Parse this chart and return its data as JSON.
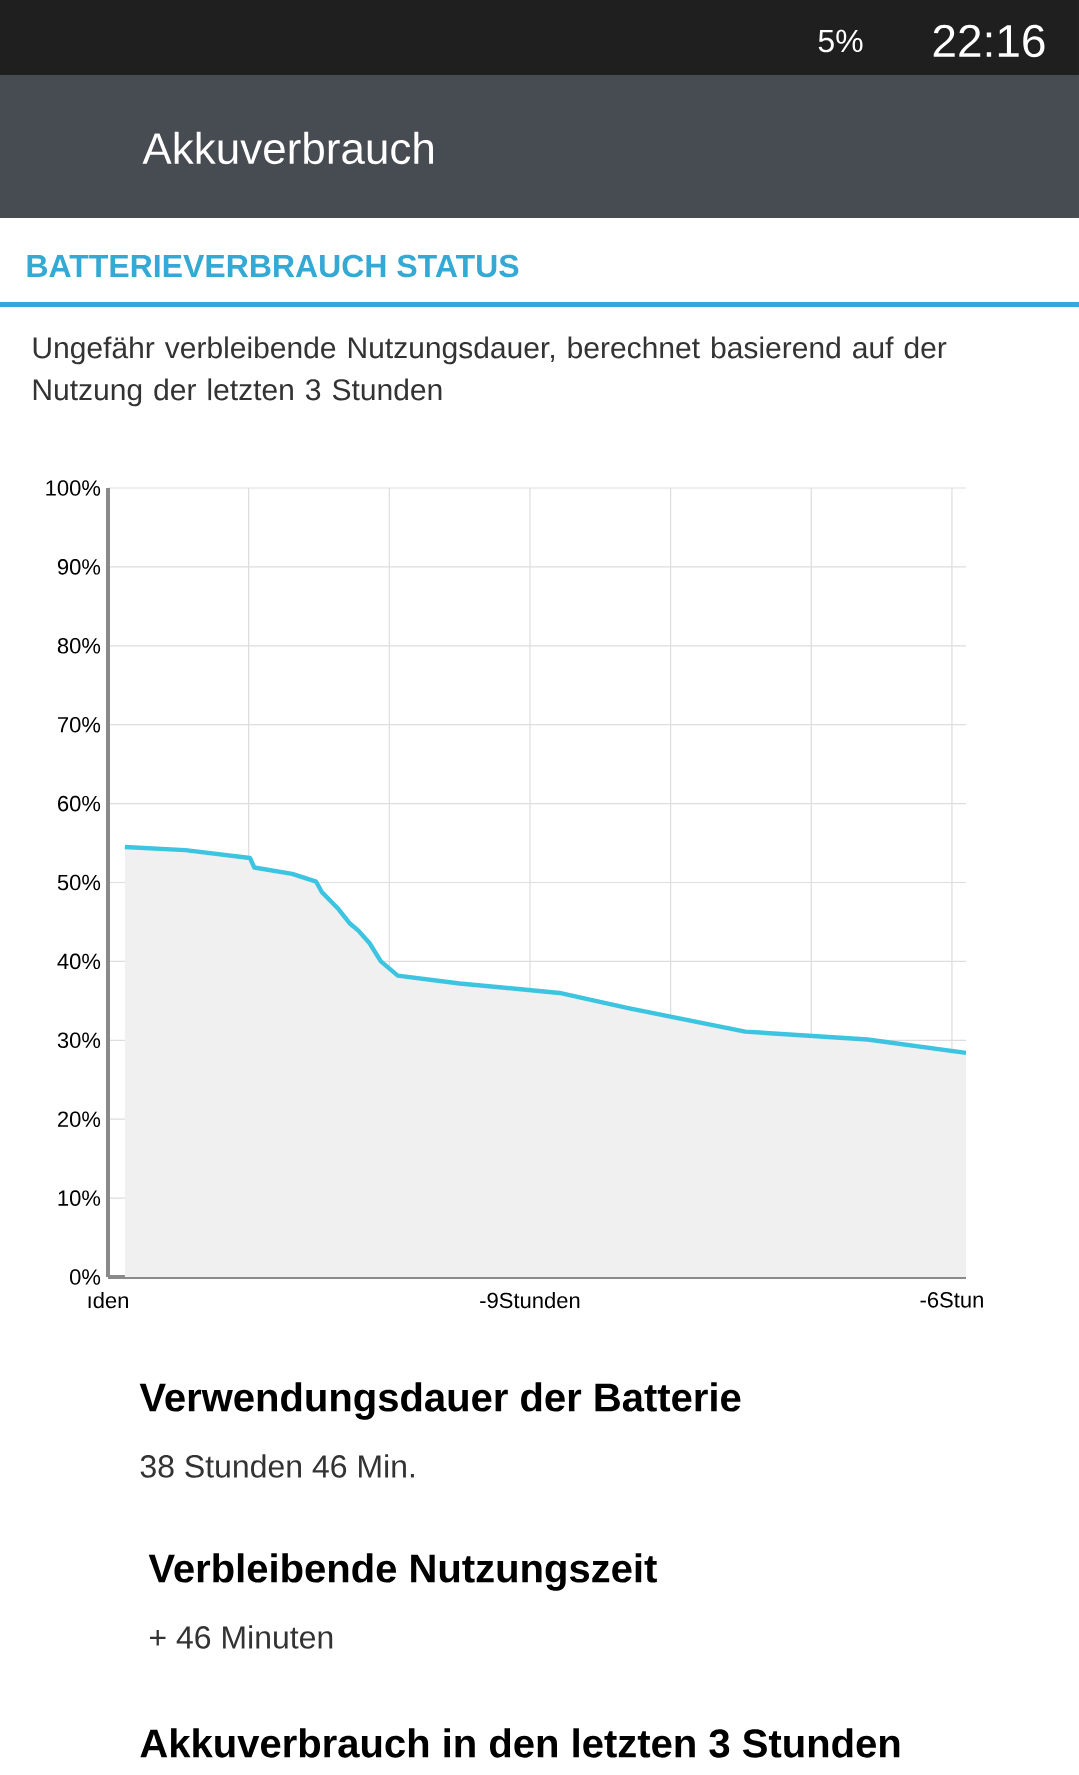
{
  "chart_data": {
    "type": "area",
    "title": "BATTERIEVERBRAUCH STATUS",
    "subtitle": "Ungefähr verbleibende Nutzungsdauer, berechnet basierend auf der Nutzung der letzten 3 Stunden",
    "annotations": [
      "Akkuverbrauch",
      "5%",
      "22:16",
      "Verwendungsdauer der Batterie",
      "38 Stunden 46 Min.",
      "Verbleibende Nutzungszeit",
      "+ 46 Minuten",
      "Akkuverbrauch in den letzten 3 Stunden"
    ],
    "x": [
      -11.88,
      -11.45,
      -10.99,
      -10.96,
      -10.69,
      -10.52,
      -10.48,
      -10.36,
      -10.28,
      -10.22,
      -10.14,
      -10.06,
      -9.94,
      -9.5,
      -8.79,
      -8.31,
      -7.47,
      -6.6,
      -5.9
    ],
    "series": [
      {
        "color": "#3cc4e0",
        "values": [
          54.5,
          54.1,
          53.1,
          51.9,
          51.1,
          50.1,
          48.8,
          46.6,
          44.8,
          43.9,
          42.3,
          40.0,
          38.2,
          37.2,
          36.0,
          34.1,
          31.1,
          30.1,
          28.4
        ]
      }
    ],
    "xlim": [
      -12,
      -5.9
    ],
    "xticks": [
      {
        "value": -12,
        "label": "ıden"
      },
      {
        "value": -11,
        "label": null
      },
      {
        "value": -10,
        "label": null
      },
      {
        "value": -9,
        "label": "-9Stunden"
      },
      {
        "value": -8,
        "label": null
      },
      {
        "value": -7,
        "label": null
      },
      {
        "value": -6,
        "label": "-6Stun"
      }
    ],
    "ylim": [
      0,
      100
    ],
    "yticks": [
      {
        "value": 0,
        "label": "0%"
      },
      {
        "value": 10,
        "label": "10%"
      },
      {
        "value": 20,
        "label": "20%"
      },
      {
        "value": 30,
        "label": "30%"
      },
      {
        "value": 40,
        "label": "40%"
      },
      {
        "value": 50,
        "label": "50%"
      },
      {
        "value": 60,
        "label": "60%"
      },
      {
        "value": 70,
        "label": "70%"
      },
      {
        "value": 80,
        "label": "80%"
      },
      {
        "value": 90,
        "label": "90%"
      },
      {
        "value": 100,
        "label": "100%"
      }
    ],
    "grid": true,
    "marker": "none",
    "line_style": "solid"
  }
}
